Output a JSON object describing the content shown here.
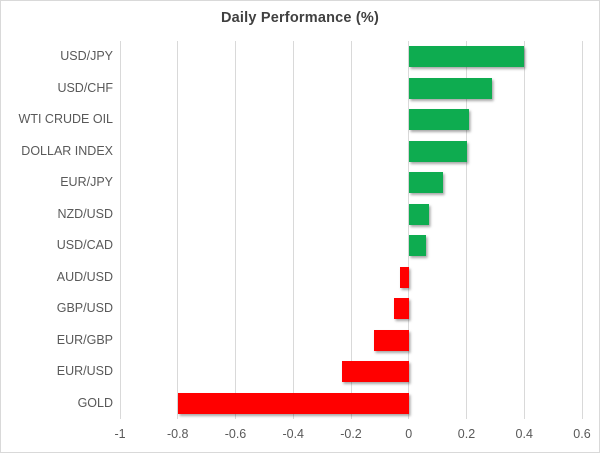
{
  "title": "Daily Performance (%)",
  "colors": {
    "positive_bar": "#0EAC50",
    "negative_bar": "#FF0000",
    "gridline": "#d9d9d9",
    "axis_text": "#595959",
    "title_text": "#404040",
    "frame_border": "#d9d9d9",
    "background": "#ffffff"
  },
  "chart_data": {
    "type": "bar",
    "orientation": "horizontal",
    "title": "Daily Performance (%)",
    "xlabel": "",
    "ylabel": "",
    "categories": [
      "USD/JPY",
      "USD/CHF",
      "WTI CRUDE OIL",
      "DOLLAR INDEX",
      "EUR/JPY",
      "NZD/USD",
      "USD/CAD",
      "AUD/USD",
      "GBP/USD",
      "EUR/GBP",
      "EUR/USD",
      "GOLD"
    ],
    "values": [
      0.4,
      0.29,
      0.21,
      0.2,
      0.12,
      0.07,
      0.06,
      -0.03,
      -0.05,
      -0.12,
      -0.23,
      -0.8
    ],
    "xlim": [
      -1,
      0.6
    ],
    "xticks": [
      -1,
      -0.8,
      -0.6,
      -0.4,
      -0.2,
      0,
      0.2,
      0.4,
      0.6
    ],
    "xtick_labels": [
      "-1",
      "-0.8",
      "-0.6",
      "-0.4",
      "-0.2",
      "0",
      "0.2",
      "0.4",
      "0.6"
    ],
    "grid": "vertical",
    "legend": "none",
    "bar_color_rule": "green if positive, red if negative"
  }
}
